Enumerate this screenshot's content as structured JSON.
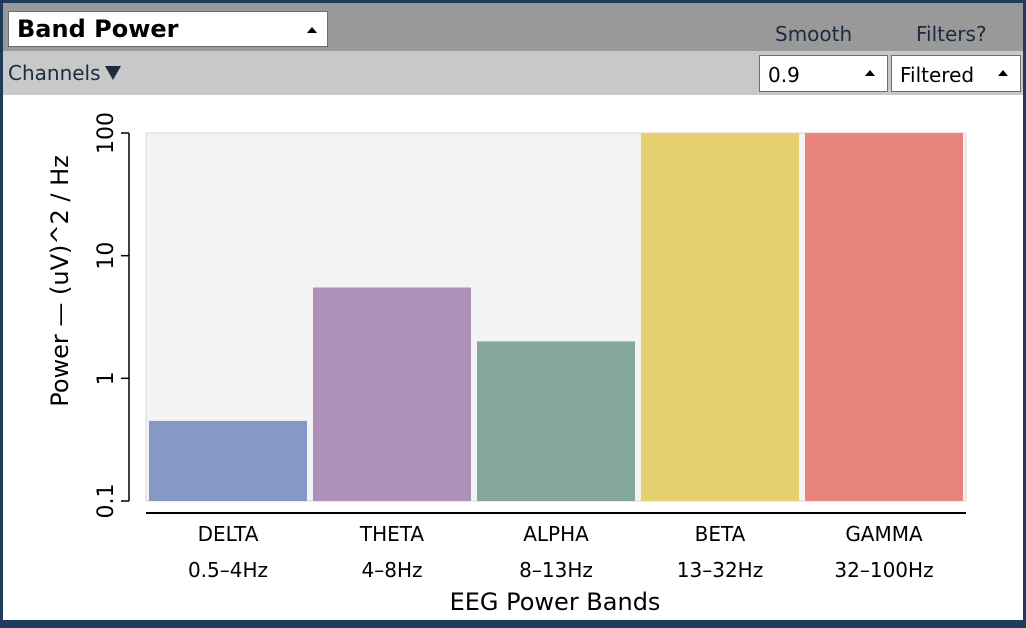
{
  "widget": {
    "title": "Band Power",
    "smooth_label": "Smooth",
    "filters_label": "Filters?",
    "channels_label": "Channels",
    "smooth_value": "0.9",
    "filters_value": "Filtered"
  },
  "icons": {
    "title_caret": "caret-up-icon",
    "channels_caret": "triangle-down-icon",
    "smooth_caret": "caret-up-icon",
    "filters_caret": "caret-up-icon"
  },
  "chart_data": {
    "type": "bar",
    "scale": "log",
    "ylim": [
      0.1,
      100
    ],
    "y_ticks": [
      {
        "value": 0.1,
        "label": "0.1"
      },
      {
        "value": 1,
        "label": "1"
      },
      {
        "value": 10,
        "label": "10"
      },
      {
        "value": 100,
        "label": "100"
      }
    ],
    "ylabel": "Power — (uV)^2 / Hz",
    "xlabel": "EEG Power Bands",
    "background": "#f3f3f3",
    "grid": false,
    "bars": [
      {
        "name": "DELTA",
        "range": "0.5–4Hz",
        "value": 0.45,
        "color": "#8499c4"
      },
      {
        "name": "THETA",
        "range": "4–8Hz",
        "value": 5.5,
        "color": "#ad91b9"
      },
      {
        "name": "ALPHA",
        "range": "8–13Hz",
        "value": 2.0,
        "color": "#83a798"
      },
      {
        "name": "BETA",
        "range": "13–32Hz",
        "value": 100,
        "color": "#e6cf6e"
      },
      {
        "name": "GAMMA",
        "range": "32–100Hz",
        "value": 100,
        "color": "#e8837d"
      }
    ]
  }
}
